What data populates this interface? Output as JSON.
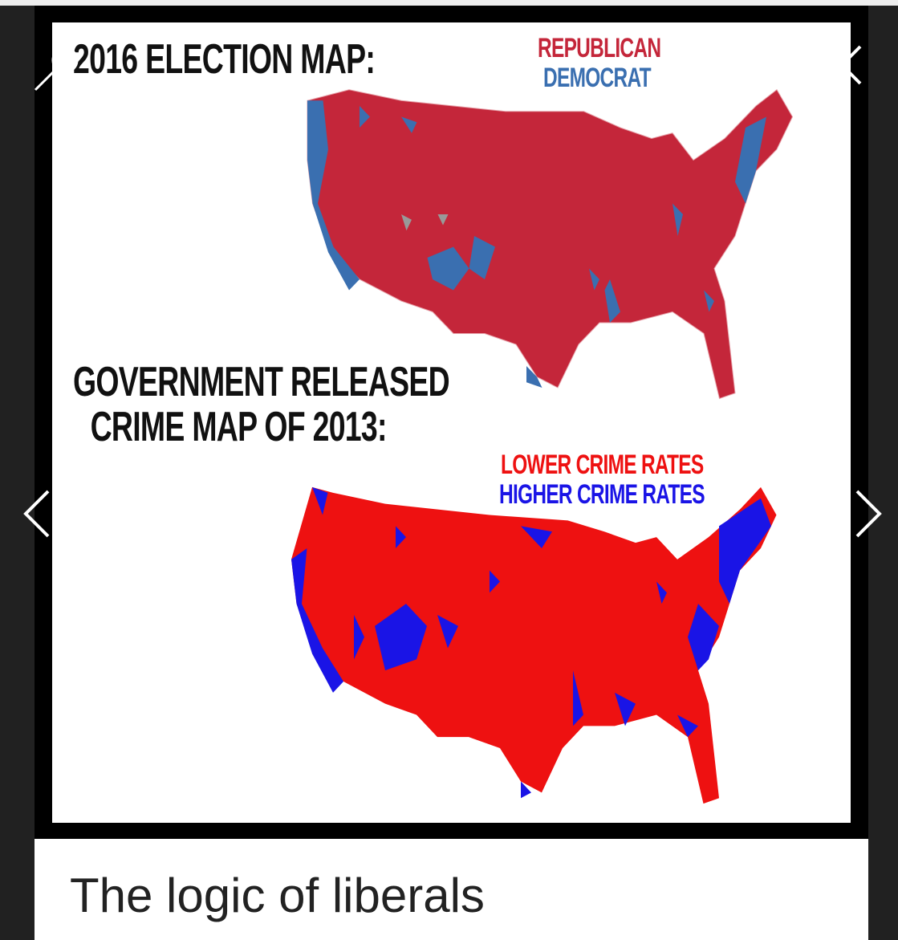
{
  "image": {
    "title_top": "2016 ELECTION MAP:",
    "legend_top": {
      "republican": "REPUBLICAN",
      "democrat": "DEMOCRAT"
    },
    "title_bottom_line1": "GOVERNMENT RELEASED",
    "title_bottom_line2": "CRIME MAP OF 2013:",
    "legend_bottom": {
      "lower": "LOWER CRIME RATES",
      "higher": "HIGHER CRIME RATES"
    },
    "colors": {
      "republican": "#c4263a",
      "democrat": "#3a6fb0",
      "lower": "#ee1111",
      "higher": "#1a14e6"
    }
  },
  "caption": "The logic of liberals",
  "icons": {
    "zoom": "magnifier-icon",
    "close": "close-icon",
    "prev": "chevron-left-icon",
    "next": "chevron-right-icon"
  }
}
